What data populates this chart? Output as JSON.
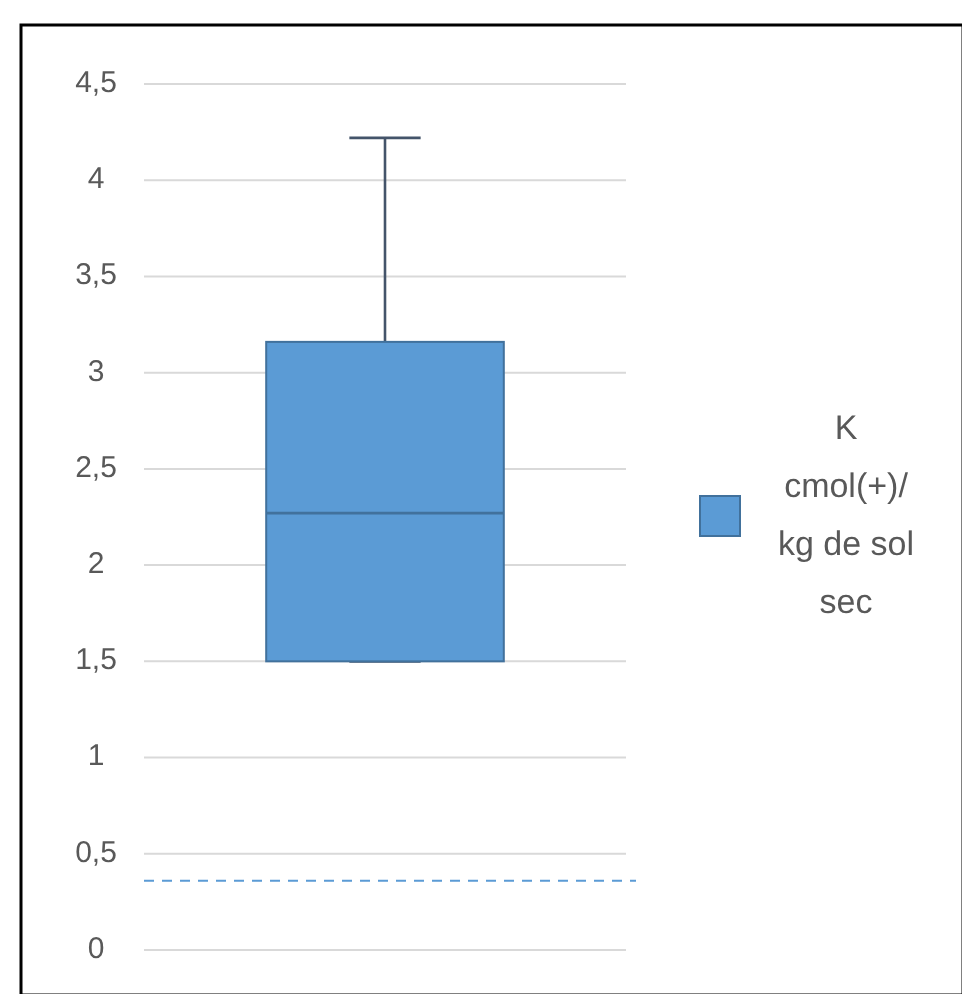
{
  "chart_data": {
    "type": "box",
    "categories": [
      null
    ],
    "series": [
      {
        "name": "K cmol(+)/ kg de sol sec",
        "color": "#5b9bd5",
        "boxes": [
          {
            "low": 1.5,
            "q1": 1.5,
            "median": 2.27,
            "q3": 3.16,
            "high": 4.22
          }
        ]
      }
    ],
    "ylim": [
      0,
      4.5
    ],
    "yticks": [
      {
        "value": 0,
        "label": "0"
      },
      {
        "value": 0.5,
        "label": "0,5"
      },
      {
        "value": 1,
        "label": "1"
      },
      {
        "value": 1.5,
        "label": "1,5"
      },
      {
        "value": 2,
        "label": "2"
      },
      {
        "value": 2.5,
        "label": "2,5"
      },
      {
        "value": 3,
        "label": "3"
      },
      {
        "value": 3.5,
        "label": "3,5"
      },
      {
        "value": 4,
        "label": "4"
      },
      {
        "value": 4.5,
        "label": "4,5"
      }
    ],
    "grid": "y",
    "legend": "right",
    "ref_lines": [
      {
        "axis": "y",
        "value": 0.36,
        "color": "#5b9bd5",
        "line_style": "dashed"
      }
    ]
  }
}
